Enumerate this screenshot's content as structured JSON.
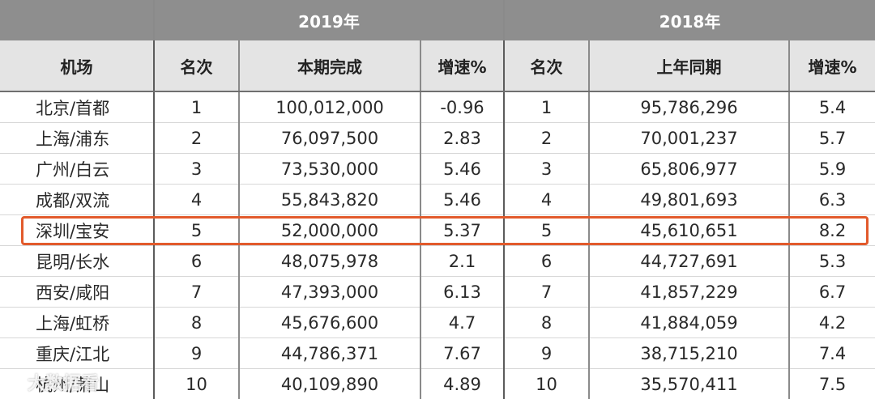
{
  "years": {
    "y2019": "2019年",
    "y2018": "2018年"
  },
  "headers": {
    "airport": "机场",
    "rank2019": "名次",
    "completed": "本期完成",
    "growth2019": "增速%",
    "rank2018": "名次",
    "same_period": "上年同期",
    "growth2018": "增速%"
  },
  "rows": [
    {
      "airport": "北京/首都",
      "rank2019": "1",
      "completed": "100,012,000",
      "growth2019": "-0.96",
      "rank2018": "1",
      "same_period": "95,786,296",
      "growth2018": "5.4"
    },
    {
      "airport": "上海/浦东",
      "rank2019": "2",
      "completed": "76,097,500",
      "growth2019": "2.83",
      "rank2018": "2",
      "same_period": "70,001,237",
      "growth2018": "5.7"
    },
    {
      "airport": "广州/白云",
      "rank2019": "3",
      "completed": "73,530,000",
      "growth2019": "5.46",
      "rank2018": "3",
      "same_period": "65,806,977",
      "growth2018": "5.9"
    },
    {
      "airport": "成都/双流",
      "rank2019": "4",
      "completed": "55,843,820",
      "growth2019": "5.46",
      "rank2018": "4",
      "same_period": "49,801,693",
      "growth2018": "6.3"
    },
    {
      "airport": "深圳/宝安",
      "rank2019": "5",
      "completed": "52,000,000",
      "growth2019": "5.37",
      "rank2018": "5",
      "same_period": "45,610,651",
      "growth2018": "8.2"
    },
    {
      "airport": "昆明/长水",
      "rank2019": "6",
      "completed": "48,075,978",
      "growth2019": "2.1",
      "rank2018": "6",
      "same_period": "44,727,691",
      "growth2018": "5.3"
    },
    {
      "airport": "西安/咸阳",
      "rank2019": "7",
      "completed": "47,393,000",
      "growth2019": "6.13",
      "rank2018": "7",
      "same_period": "41,857,229",
      "growth2018": "6.7"
    },
    {
      "airport": "上海/虹桥",
      "rank2019": "8",
      "completed": "45,676,600",
      "growth2019": "4.7",
      "rank2018": "8",
      "same_period": "41,884,059",
      "growth2018": "4.2"
    },
    {
      "airport": "重庆/江北",
      "rank2019": "9",
      "completed": "44,786,371",
      "growth2019": "7.67",
      "rank2018": "9",
      "same_period": "38,715,210",
      "growth2018": "7.4"
    },
    {
      "airport": "杭州/萧山",
      "rank2019": "10",
      "completed": "40,109,890",
      "growth2019": "4.89",
      "rank2018": "10",
      "same_period": "35,570,411",
      "growth2018": "7.5"
    }
  ],
  "highlight_row": "深圳/宝安",
  "highlight_color": "#e25a2c",
  "header_gray": "#8e8e8e",
  "subheader_gray": "#e4e4e4",
  "watermark": {
    "icon": "weibo-icon",
    "text": "大数据看"
  }
}
